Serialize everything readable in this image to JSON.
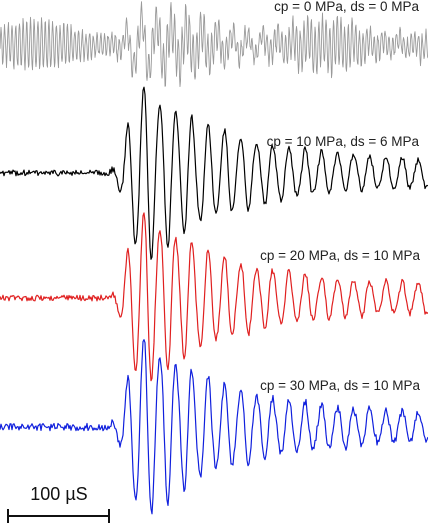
{
  "chart_data": {
    "type": "line",
    "title": "",
    "xlabel": "",
    "ylabel": "",
    "grid": false,
    "axes_visible": false,
    "legend": "none",
    "scale_bar": {
      "label": "100 µS",
      "value": 100,
      "unit": "µS"
    },
    "series": [
      {
        "label": "cp = 0 MPa, ds = 0 MPa",
        "confining_pressure_mpa": 0,
        "differential_stress_mpa": 0,
        "color": "#9a9a9a",
        "baseline": "high-frequency noise",
        "onset_us": 0,
        "peak_time_us": 30,
        "peak_relative_amplitude": 0.6,
        "dominant_period_us": 15,
        "noise_relative_amplitude": 0.27
      },
      {
        "label": "cp = 10 MPa, ds = 6 MPa",
        "confining_pressure_mpa": 10,
        "differential_stress_mpa": 6,
        "color": "#000000",
        "baseline": "flat",
        "onset_us": 0,
        "peak_time_us": 32,
        "peak_relative_amplitude": 1.0,
        "dominant_period_us": 16,
        "noise_relative_amplitude": 0.02
      },
      {
        "label": "cp = 20 MPa, ds = 10 MPa",
        "confining_pressure_mpa": 20,
        "differential_stress_mpa": 10,
        "color": "#e02020",
        "baseline": "flat",
        "onset_us": 0,
        "peak_time_us": 32,
        "peak_relative_amplitude": 1.0,
        "dominant_period_us": 16,
        "noise_relative_amplitude": 0.02
      },
      {
        "label": "cp = 30 MPa, ds = 10 MPa",
        "confining_pressure_mpa": 30,
        "differential_stress_mpa": 10,
        "color": "#1020dd",
        "baseline": "flat",
        "onset_us": 0,
        "peak_time_us": 32,
        "peak_relative_amplitude": 1.0,
        "dominant_period_us": 16,
        "noise_relative_amplitude": 0.025
      }
    ]
  }
}
